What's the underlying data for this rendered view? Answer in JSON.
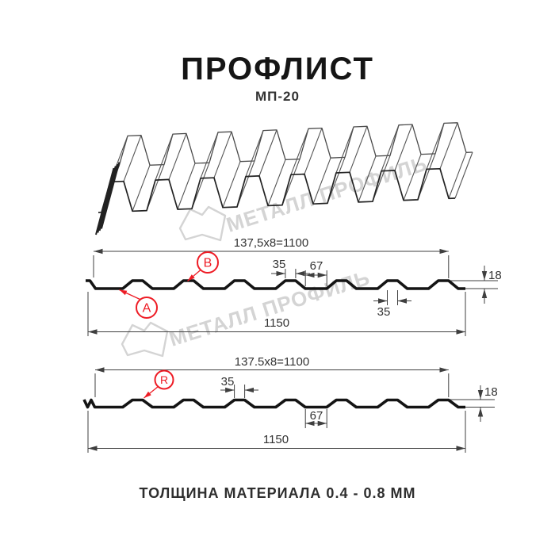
{
  "header": {
    "title": "ПРОФЛИСТ",
    "subtitle": "МП-20"
  },
  "watermark": {
    "brand": "МЕТАЛЛ ПРОФИЛЬ"
  },
  "section1": {
    "pitch_dim": "137,5x8=1100",
    "crest_width_top": "35",
    "valley_width": "67",
    "height": "18",
    "crest_width_bottom": "35",
    "total_width": "1150",
    "point_a": "A",
    "point_b": "B"
  },
  "section2": {
    "pitch_dim": "137.5x8=1100",
    "crest_width": "35",
    "valley_width": "67",
    "height": "18",
    "total_width": "1150",
    "radius_label": "R"
  },
  "footer": {
    "note": "ТОЛЩИНА МАТЕРИАЛА 0.4 - 0.8 ММ"
  },
  "colors": {
    "accent_red": "#ee1c25",
    "dimension_line": "#3f3f3f",
    "profile_line": "#141414",
    "watermark_gray": "#d4d4d4"
  }
}
